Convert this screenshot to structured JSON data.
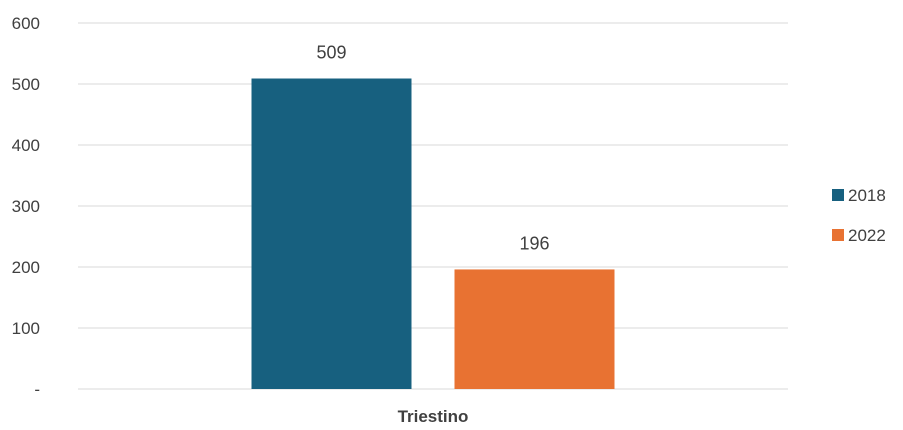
{
  "chart_data": {
    "type": "bar",
    "categories": [
      "Triestino"
    ],
    "series": [
      {
        "name": "2018",
        "values": [
          509
        ],
        "color": "#17607f"
      },
      {
        "name": "2022",
        "values": [
          196
        ],
        "color": "#e87232"
      }
    ],
    "ylim": [
      0,
      600
    ],
    "yticks": [
      {
        "value": 0,
        "label": "-"
      },
      {
        "value": 100,
        "label": "100"
      },
      {
        "value": 200,
        "label": "200"
      },
      {
        "value": 300,
        "label": "300"
      },
      {
        "value": 400,
        "label": "400"
      },
      {
        "value": 500,
        "label": "500"
      },
      {
        "value": 600,
        "label": "600"
      }
    ],
    "data_labels": [
      "509",
      "196"
    ],
    "grid": true,
    "legend_position": "right"
  }
}
